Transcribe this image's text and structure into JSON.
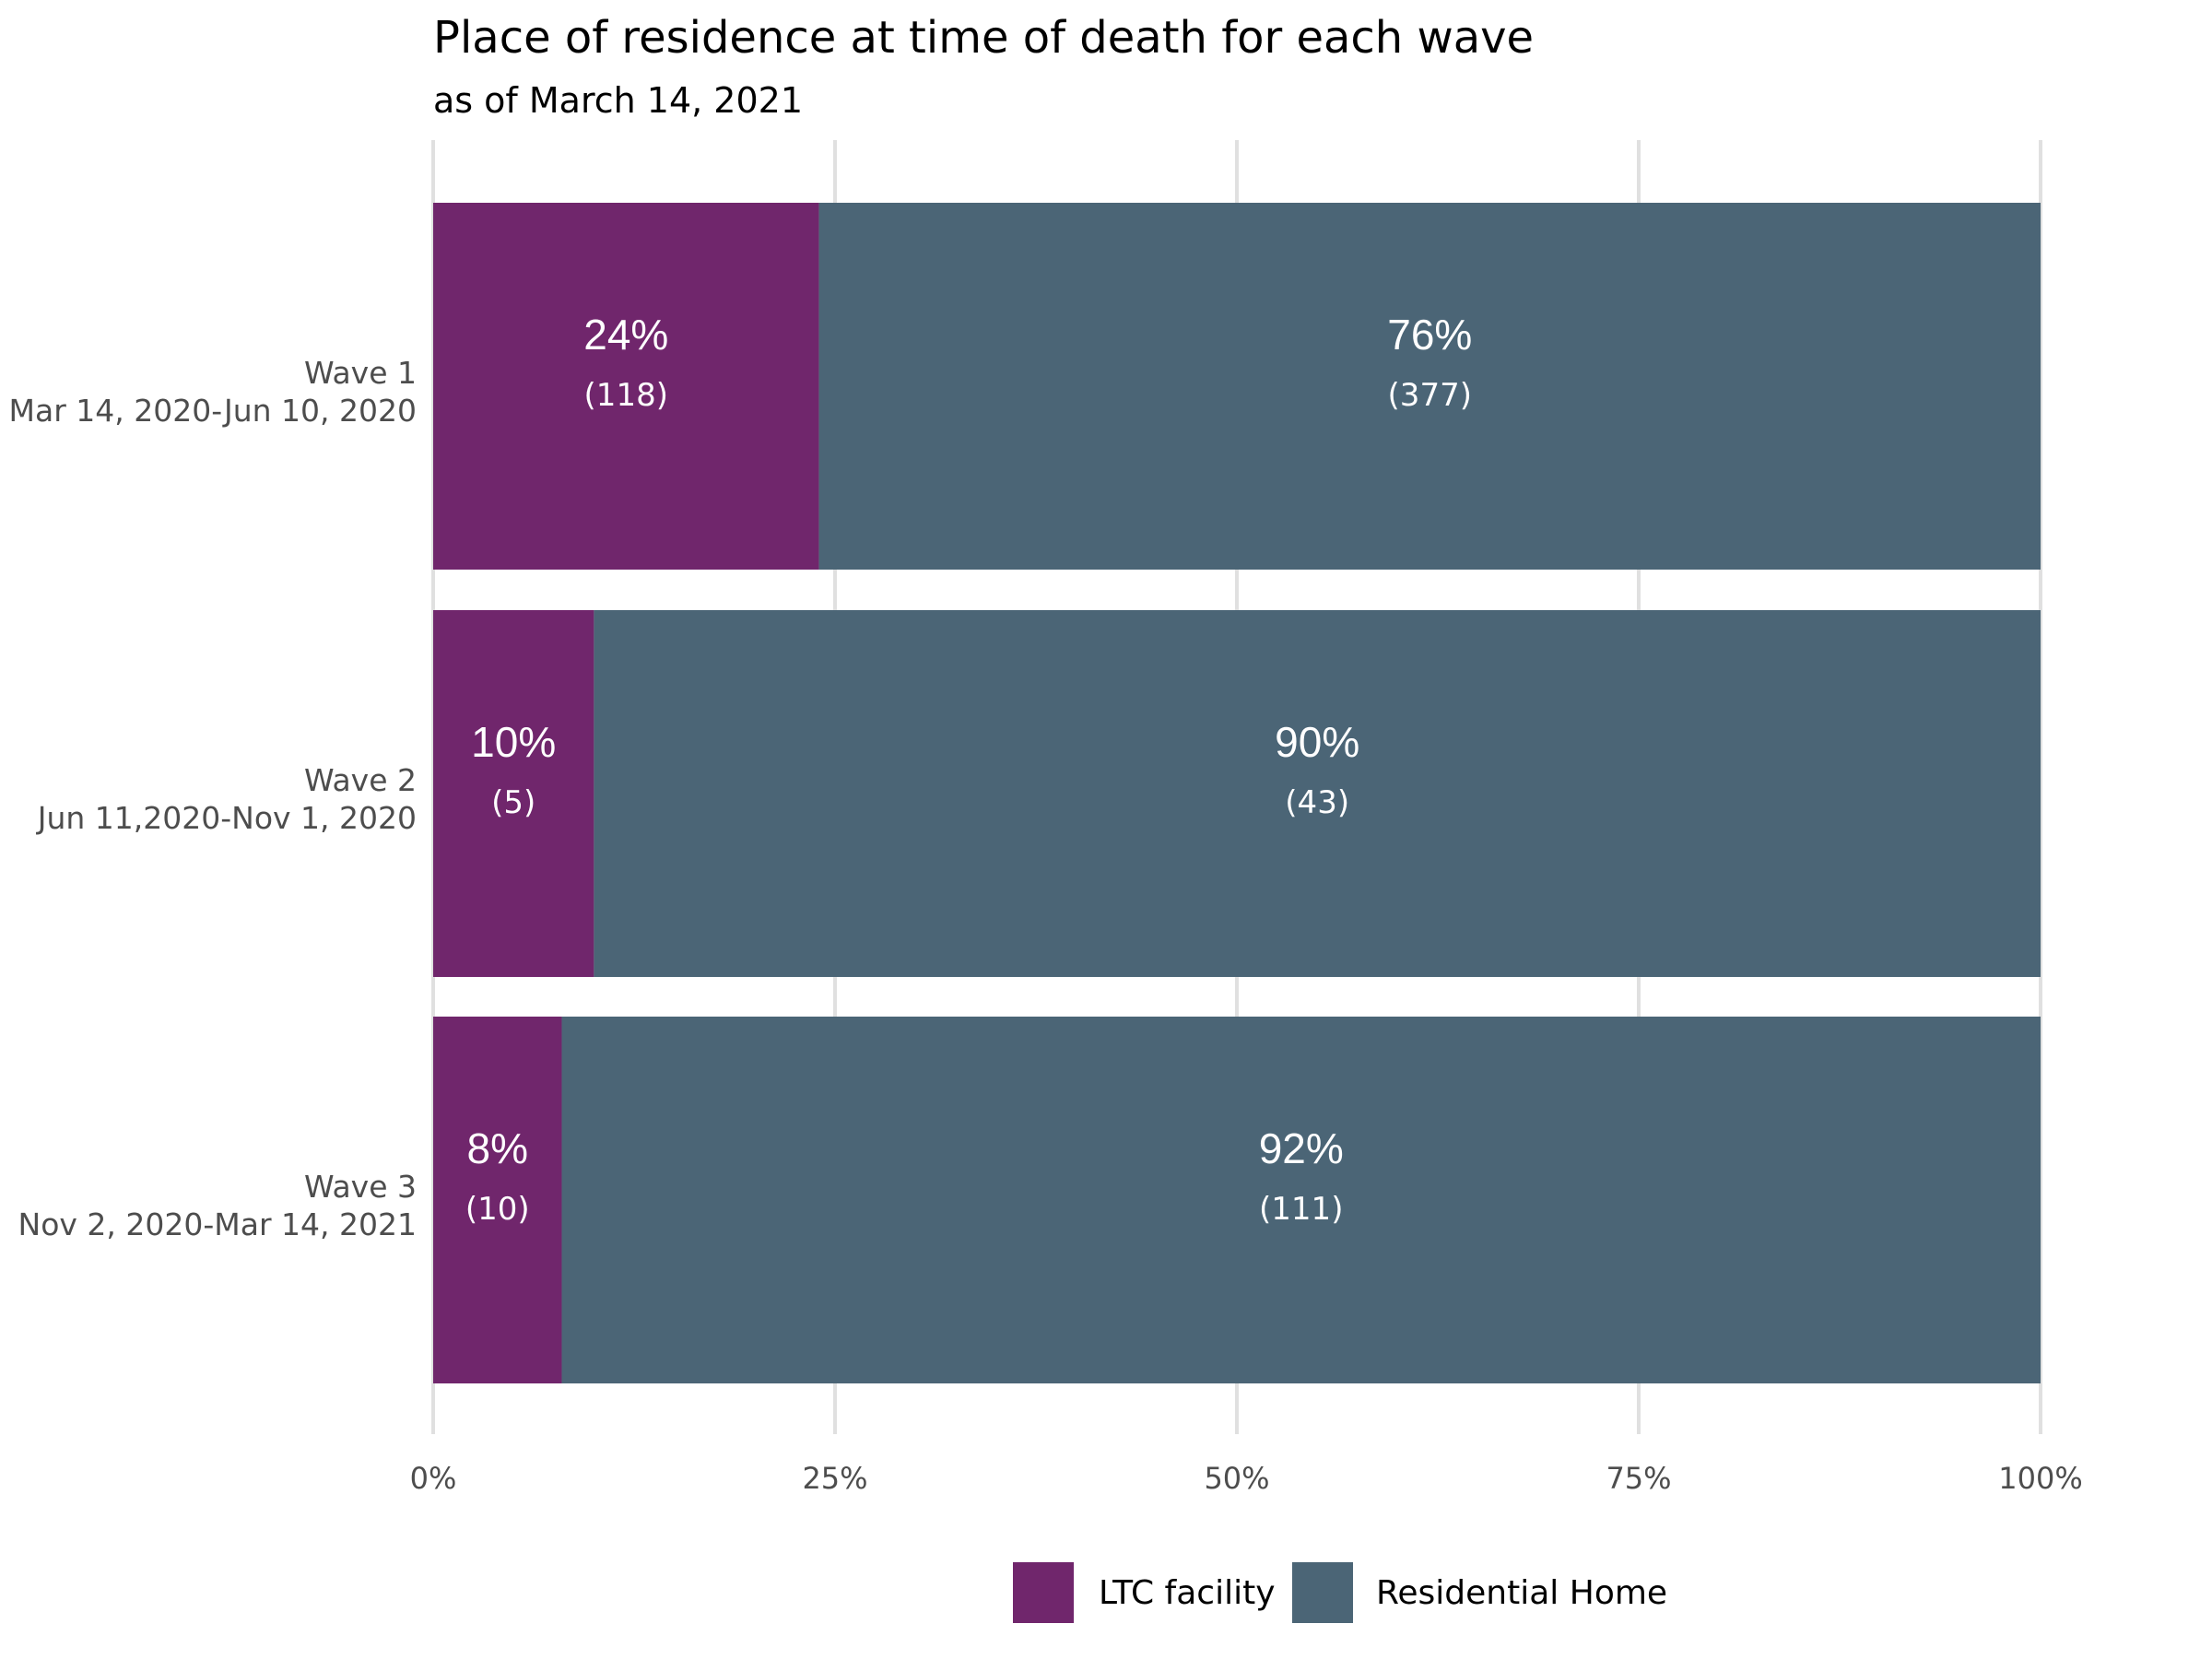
{
  "chart_data": {
    "type": "bar",
    "orientation": "horizontal",
    "stacked": true,
    "normalized": true,
    "title": "Place of residence at time of death for each wave",
    "subtitle": "as of March 14, 2021",
    "categories": [
      {
        "wave": "Wave 1",
        "period": "Mar 14, 2020-Jun 10, 2020"
      },
      {
        "wave": "Wave 2",
        "period": "Jun 11,2020-Nov 1, 2020"
      },
      {
        "wave": "Wave 3",
        "period": "Nov 2, 2020-Mar 14, 2021"
      }
    ],
    "series": [
      {
        "name": "LTC facility",
        "color": "#70266c",
        "values": [
          24,
          10,
          8
        ],
        "counts": [
          118,
          5,
          10
        ],
        "value_labels": [
          "24%",
          "10%",
          "8%"
        ],
        "count_labels": [
          "(118)",
          "(5)",
          "(10)"
        ]
      },
      {
        "name": "Residential Home",
        "color": "#4b6576",
        "values": [
          76,
          90,
          92
        ],
        "counts": [
          377,
          43,
          111
        ],
        "value_labels": [
          "76%",
          "90%",
          "92%"
        ],
        "count_labels": [
          "(377)",
          "(43)",
          "(111)"
        ]
      }
    ],
    "xlim": [
      0,
      100
    ],
    "xticks": [
      0,
      25,
      50,
      75,
      100
    ],
    "xtick_labels": [
      "0%",
      "25%",
      "50%",
      "75%",
      "100%"
    ],
    "grid": true,
    "legend_position": "bottom"
  }
}
